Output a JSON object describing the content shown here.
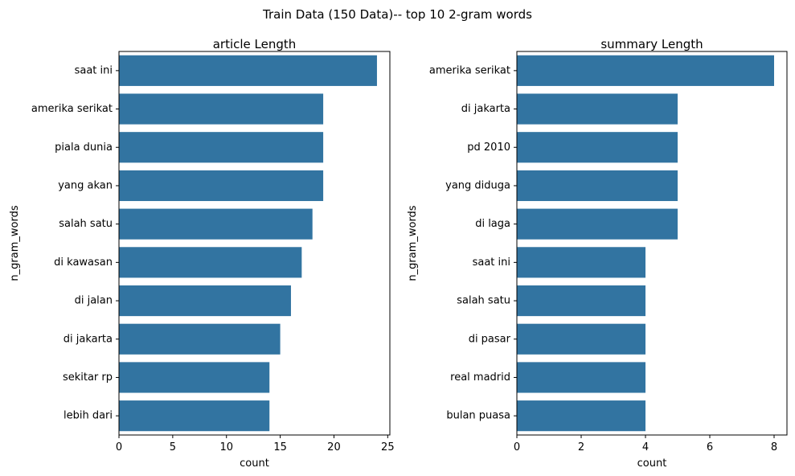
{
  "figure_title": "Train Data (150 Data)-- top 10 2-gram words",
  "bar_color": "#3274a1",
  "chart_data": [
    {
      "type": "bar",
      "orientation": "horizontal",
      "title": "article Length",
      "xlabel": "count",
      "ylabel": "n_gram_words",
      "xlim": [
        0,
        25.2
      ],
      "xticks": [
        0,
        5,
        10,
        15,
        20,
        25
      ],
      "grid": false,
      "categories": [
        "saat ini",
        "amerika serikat",
        "piala dunia",
        "yang akan",
        "salah satu",
        "di kawasan",
        "di jalan",
        "di jakarta",
        "sekitar rp",
        "lebih dari"
      ],
      "values": [
        24,
        19,
        19,
        19,
        18,
        17,
        16,
        15,
        14,
        14
      ]
    },
    {
      "type": "bar",
      "orientation": "horizontal",
      "title": "summary Length",
      "xlabel": "count",
      "ylabel": "n_gram_words",
      "xlim": [
        0,
        8.4
      ],
      "xticks": [
        0,
        2,
        4,
        6,
        8
      ],
      "grid": false,
      "categories": [
        "amerika serikat",
        "di jakarta",
        "pd 2010",
        "yang diduga",
        "di laga",
        "saat ini",
        "salah satu",
        "di pasar",
        "real madrid",
        "bulan puasa"
      ],
      "values": [
        8,
        5,
        5,
        5,
        5,
        4,
        4,
        4,
        4,
        4
      ]
    }
  ]
}
